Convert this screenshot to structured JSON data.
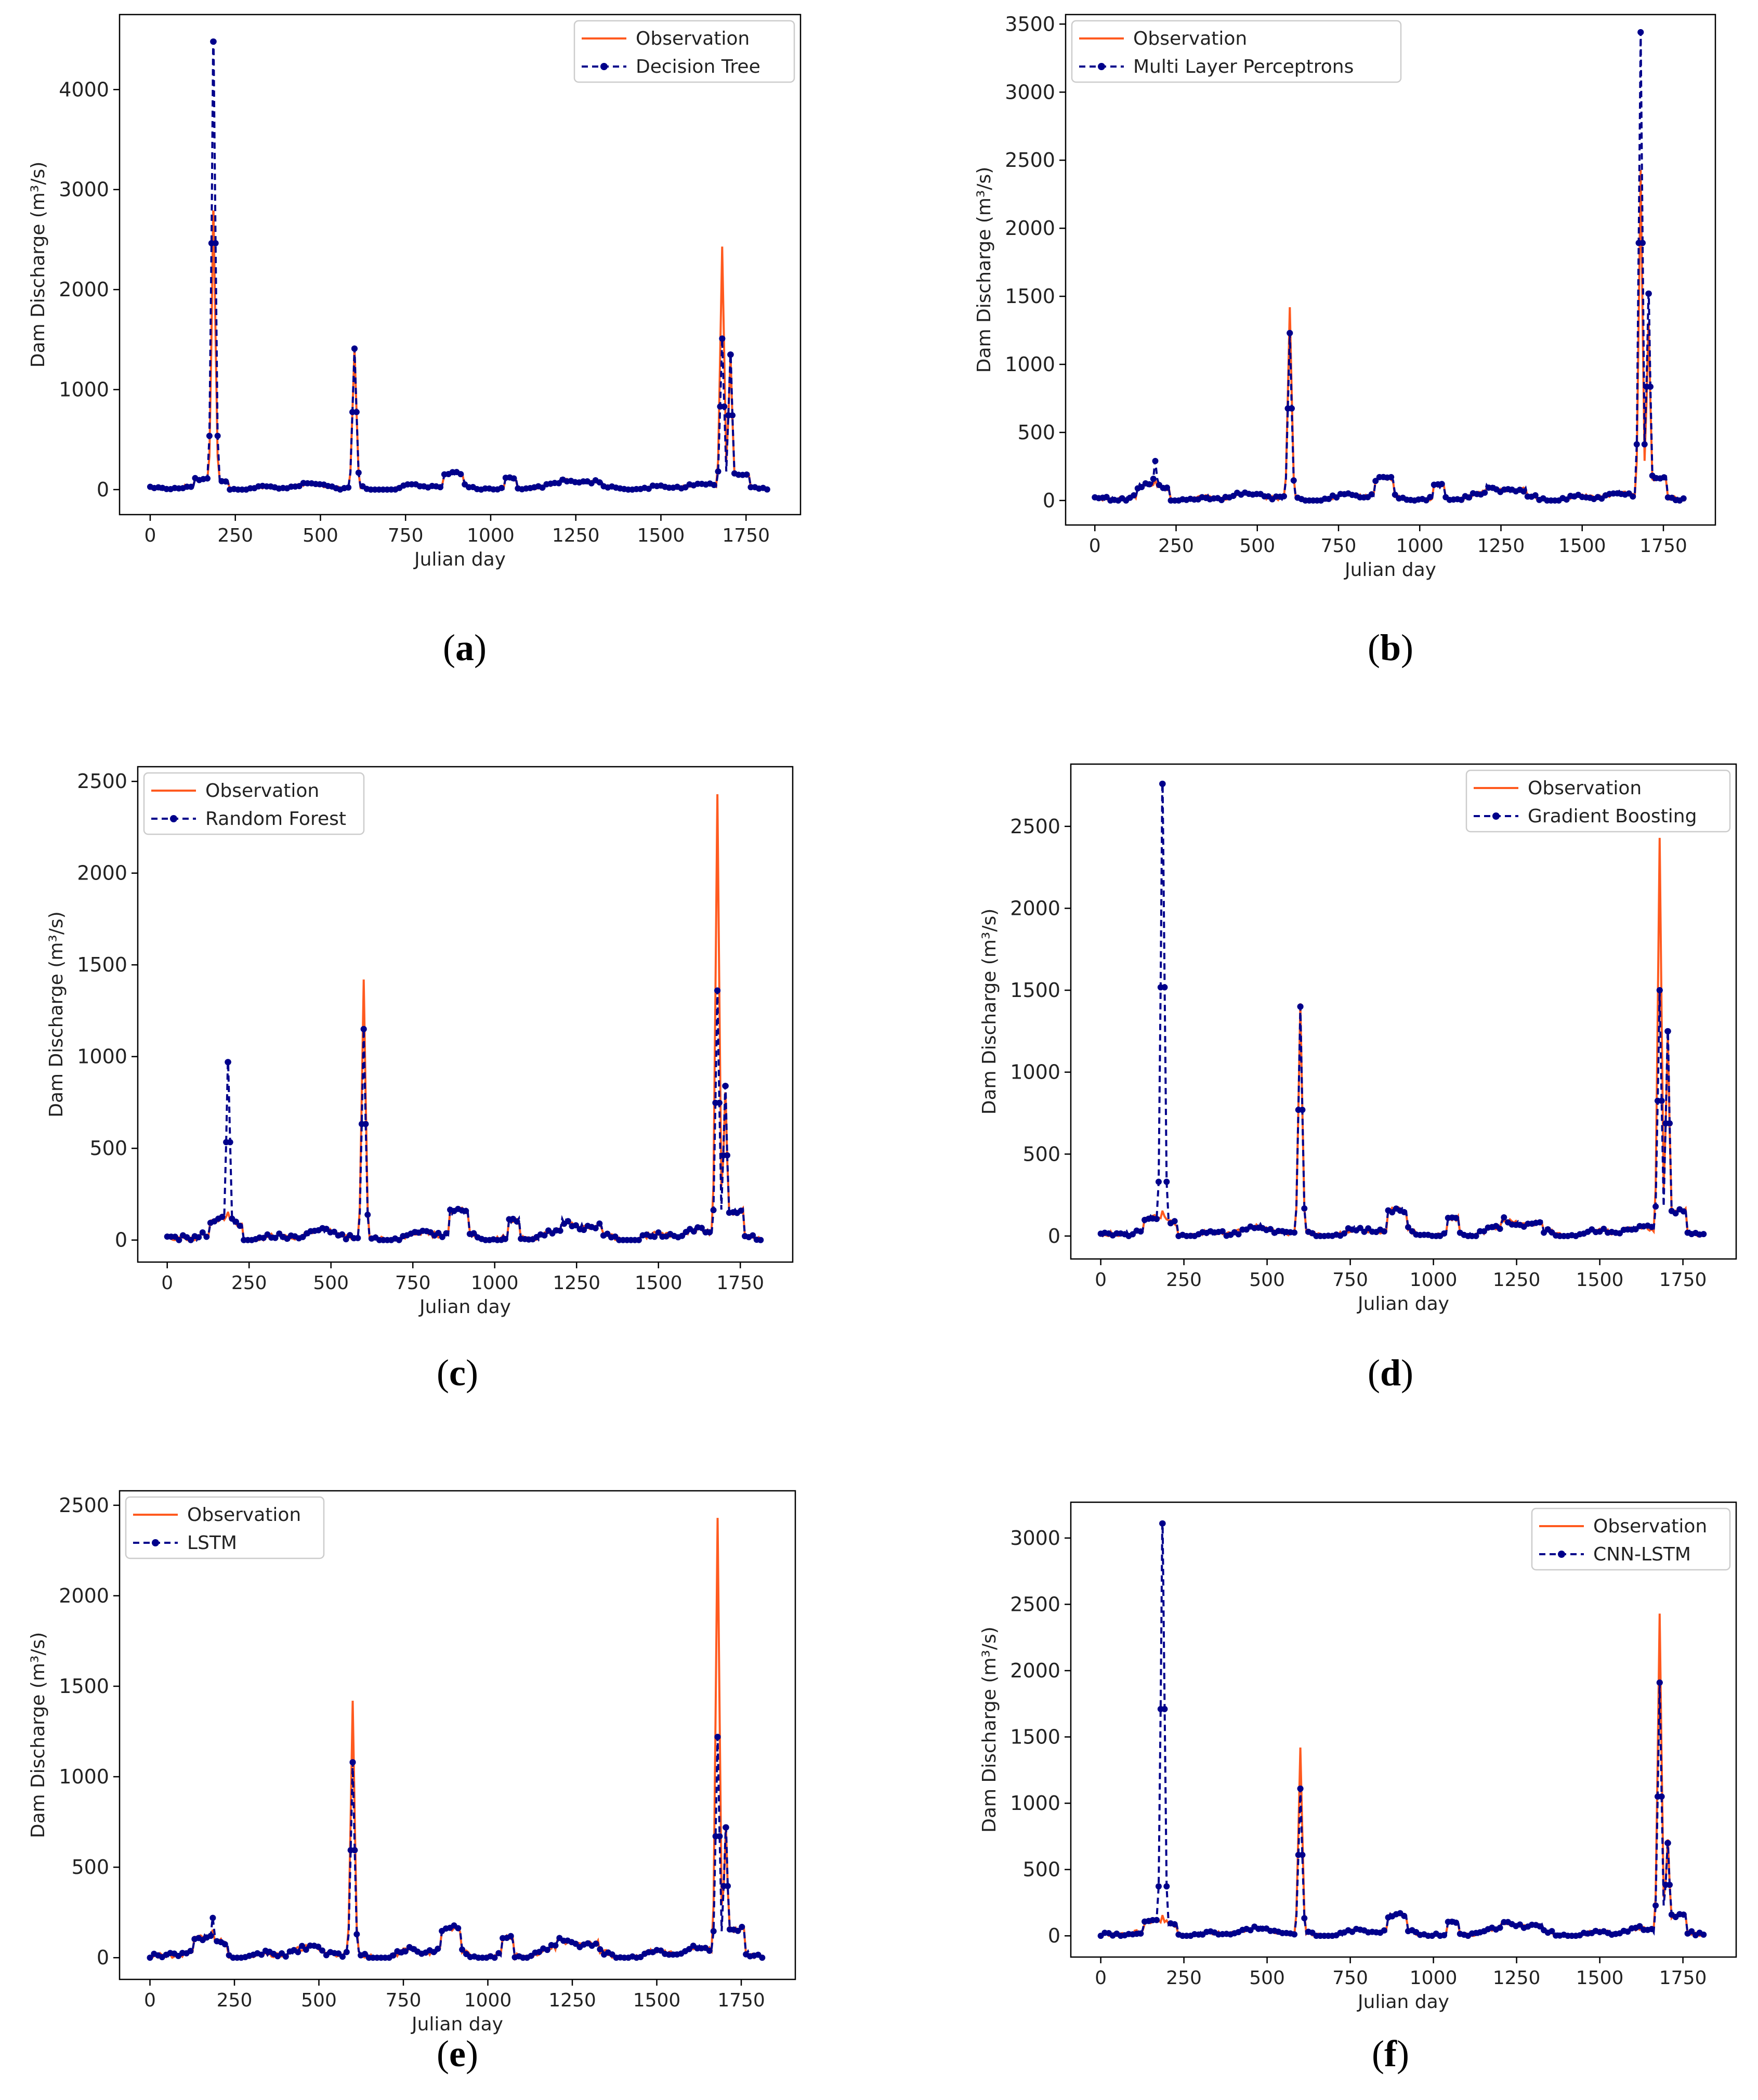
{
  "chart_data": [
    {
      "id": "a",
      "type": "line",
      "caption": "a",
      "xlabel": "Julian day",
      "ylabel": "Dam Discharge (m³/s)",
      "xlim": [
        -90,
        1910
      ],
      "ylim": [
        -250,
        4750
      ],
      "xticks": [
        0,
        250,
        500,
        750,
        1000,
        1250,
        1500,
        1750
      ],
      "yticks": [
        0,
        1000,
        2000,
        3000,
        4000
      ],
      "legend_loc": "top-right",
      "series": [
        {
          "name": "Observation",
          "style": "solid",
          "color": "#ff5a1f",
          "peaks": [
            [
              185,
              2780
            ],
            [
              600,
              1420
            ],
            [
              1680,
              2430
            ],
            [
              1705,
              1300
            ]
          ]
        },
        {
          "name": "Decision Tree",
          "style": "dashed-marker",
          "color": "#00008b",
          "peaks": [
            [
              185,
              4480
            ],
            [
              600,
              1410
            ],
            [
              1680,
              1510
            ],
            [
              1705,
              1350
            ]
          ]
        }
      ]
    },
    {
      "id": "b",
      "type": "line",
      "caption": "b",
      "xlabel": "Julian day",
      "ylabel": "Dam Discharge (m³/s)",
      "xlim": [
        -90,
        1910
      ],
      "ylim": [
        -180,
        3570
      ],
      "xticks": [
        0,
        250,
        500,
        750,
        1000,
        1250,
        1500,
        1750
      ],
      "yticks": [
        0,
        500,
        1000,
        1500,
        2000,
        2500,
        3000,
        3500
      ],
      "legend_loc": "top-left",
      "series": [
        {
          "name": "Observation",
          "style": "solid",
          "color": "#ff5a1f",
          "peaks": [
            [
              185,
              150
            ],
            [
              600,
              1420
            ],
            [
              1680,
              2430
            ],
            [
              1705,
              1300
            ]
          ]
        },
        {
          "name": "Multi Layer Perceptrons",
          "style": "dashed-marker",
          "color": "#00008b",
          "peaks": [
            [
              185,
              290
            ],
            [
              600,
              1230
            ],
            [
              1680,
              3440
            ],
            [
              1705,
              1520
            ]
          ]
        }
      ]
    },
    {
      "id": "c",
      "type": "line",
      "caption": "c",
      "xlabel": "Julian day",
      "ylabel": "Dam Discharge (m³/s)",
      "xlim": [
        -90,
        1910
      ],
      "ylim": [
        -120,
        2580
      ],
      "xticks": [
        0,
        250,
        500,
        750,
        1000,
        1250,
        1500,
        1750
      ],
      "yticks": [
        0,
        500,
        1000,
        1500,
        2000,
        2500
      ],
      "legend_loc": "top-left",
      "series": [
        {
          "name": "Observation",
          "style": "solid",
          "color": "#ff5a1f",
          "peaks": [
            [
              185,
              150
            ],
            [
              600,
              1420
            ],
            [
              1680,
              2430
            ],
            [
              1705,
              800
            ]
          ]
        },
        {
          "name": "Random Forest",
          "style": "dashed-marker",
          "color": "#00008b",
          "peaks": [
            [
              185,
              970
            ],
            [
              600,
              1150
            ],
            [
              1680,
              1360
            ],
            [
              1705,
              840
            ]
          ]
        }
      ]
    },
    {
      "id": "d",
      "type": "line",
      "caption": "d",
      "xlabel": "Julian day",
      "ylabel": "Dam Discharge (m³/s)",
      "xlim": [
        -90,
        1910
      ],
      "ylim": [
        -140,
        2880
      ],
      "xticks": [
        0,
        250,
        500,
        750,
        1000,
        1250,
        1500,
        1750
      ],
      "yticks": [
        0,
        500,
        1000,
        1500,
        2000,
        2500
      ],
      "legend_loc": "top-right",
      "series": [
        {
          "name": "Observation",
          "style": "solid",
          "color": "#ff5a1f",
          "peaks": [
            [
              185,
              150
            ],
            [
              600,
              1420
            ],
            [
              1680,
              2430
            ],
            [
              1705,
              1200
            ]
          ]
        },
        {
          "name": "Gradient Boosting",
          "style": "dashed-marker",
          "color": "#00008b",
          "peaks": [
            [
              185,
              2760
            ],
            [
              600,
              1400
            ],
            [
              1680,
              1500
            ],
            [
              1705,
              1250
            ]
          ]
        }
      ]
    },
    {
      "id": "e",
      "type": "line",
      "caption": "e",
      "xlabel": "Julian day",
      "ylabel": "Dam Discharge (m³/s)",
      "xlim": [
        -90,
        1910
      ],
      "ylim": [
        -120,
        2580
      ],
      "xticks": [
        0,
        250,
        500,
        750,
        1000,
        1250,
        1500,
        1750
      ],
      "yticks": [
        0,
        500,
        1000,
        1500,
        2000,
        2500
      ],
      "legend_loc": "top-left",
      "series": [
        {
          "name": "Observation",
          "style": "solid",
          "color": "#ff5a1f",
          "peaks": [
            [
              185,
              150
            ],
            [
              600,
              1420
            ],
            [
              1680,
              2430
            ],
            [
              1705,
              700
            ]
          ]
        },
        {
          "name": "LSTM",
          "style": "dashed-marker",
          "color": "#00008b",
          "peaks": [
            [
              185,
              220
            ],
            [
              600,
              1080
            ],
            [
              1680,
              1220
            ],
            [
              1705,
              720
            ]
          ]
        }
      ]
    },
    {
      "id": "f",
      "type": "line",
      "caption": "f",
      "xlabel": "Julian day",
      "ylabel": "Dam Discharge (m³/s)",
      "xlim": [
        -90,
        1910
      ],
      "ylim": [
        -160,
        3270
      ],
      "xticks": [
        0,
        250,
        500,
        750,
        1000,
        1250,
        1500,
        1750
      ],
      "yticks": [
        0,
        500,
        1000,
        1500,
        2000,
        2500,
        3000
      ],
      "legend_loc": "top-right",
      "series": [
        {
          "name": "Observation",
          "style": "solid",
          "color": "#ff5a1f",
          "peaks": [
            [
              185,
              150
            ],
            [
              600,
              1420
            ],
            [
              1680,
              2430
            ],
            [
              1705,
              720
            ]
          ]
        },
        {
          "name": "CNN-LSTM",
          "style": "dashed-marker",
          "color": "#00008b",
          "peaks": [
            [
              185,
              3110
            ],
            [
              600,
              1110
            ],
            [
              1680,
              1910
            ],
            [
              1705,
              700
            ]
          ]
        }
      ]
    }
  ]
}
